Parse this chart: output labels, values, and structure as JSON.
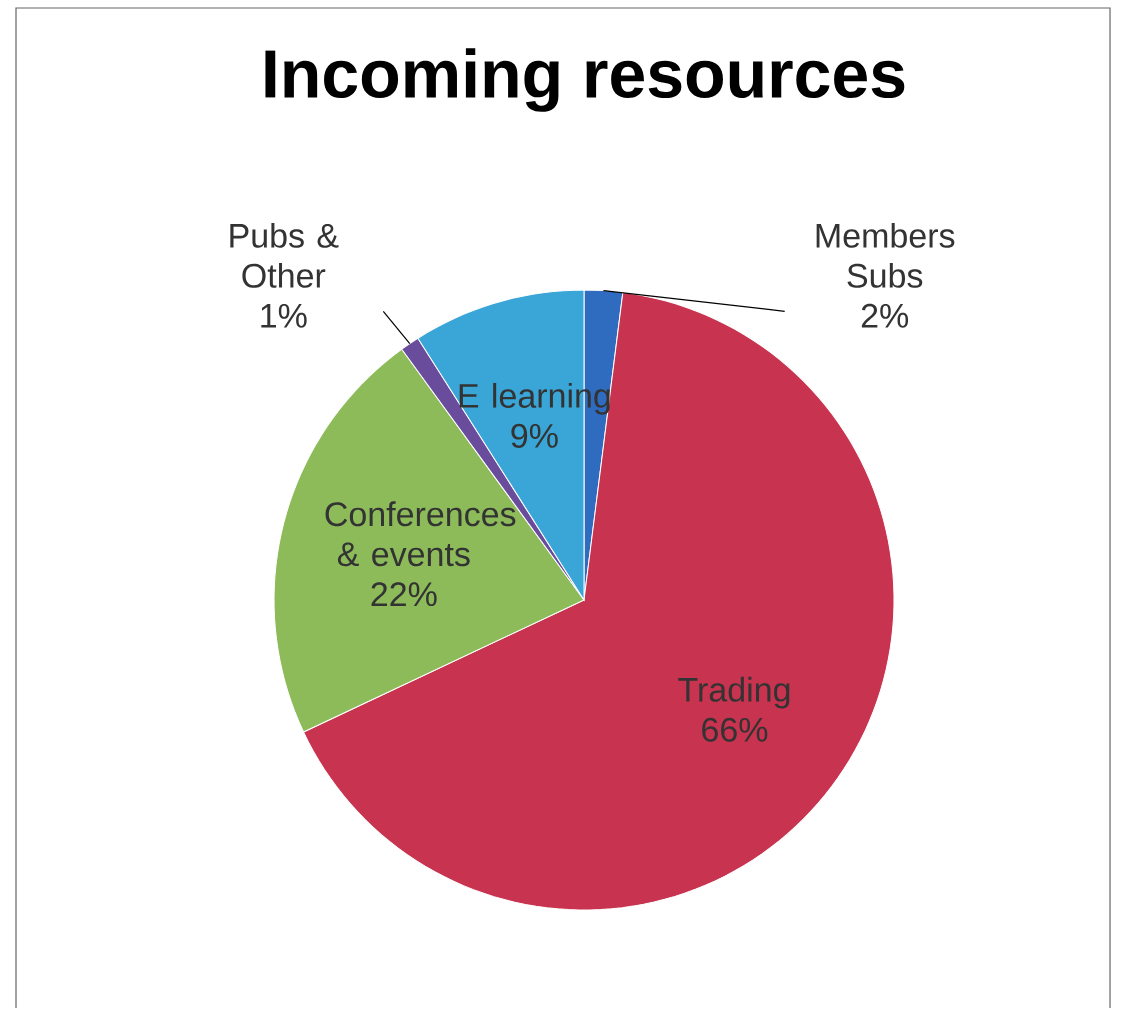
{
  "chart_data": {
    "type": "pie",
    "title": "Incoming resources",
    "categories": [
      "Members Subs",
      "Trading",
      "Conferences & events",
      "Pubs & Other",
      "E learning"
    ],
    "values": [
      2,
      66,
      22,
      1,
      9
    ],
    "colors": [
      "#2f6cbf",
      "#c8334f",
      "#8dbb5a",
      "#6a4c9c",
      "#3aa6d8"
    ],
    "value_labels": [
      "2%",
      "66%",
      "22%",
      "1%",
      "9%"
    ]
  }
}
